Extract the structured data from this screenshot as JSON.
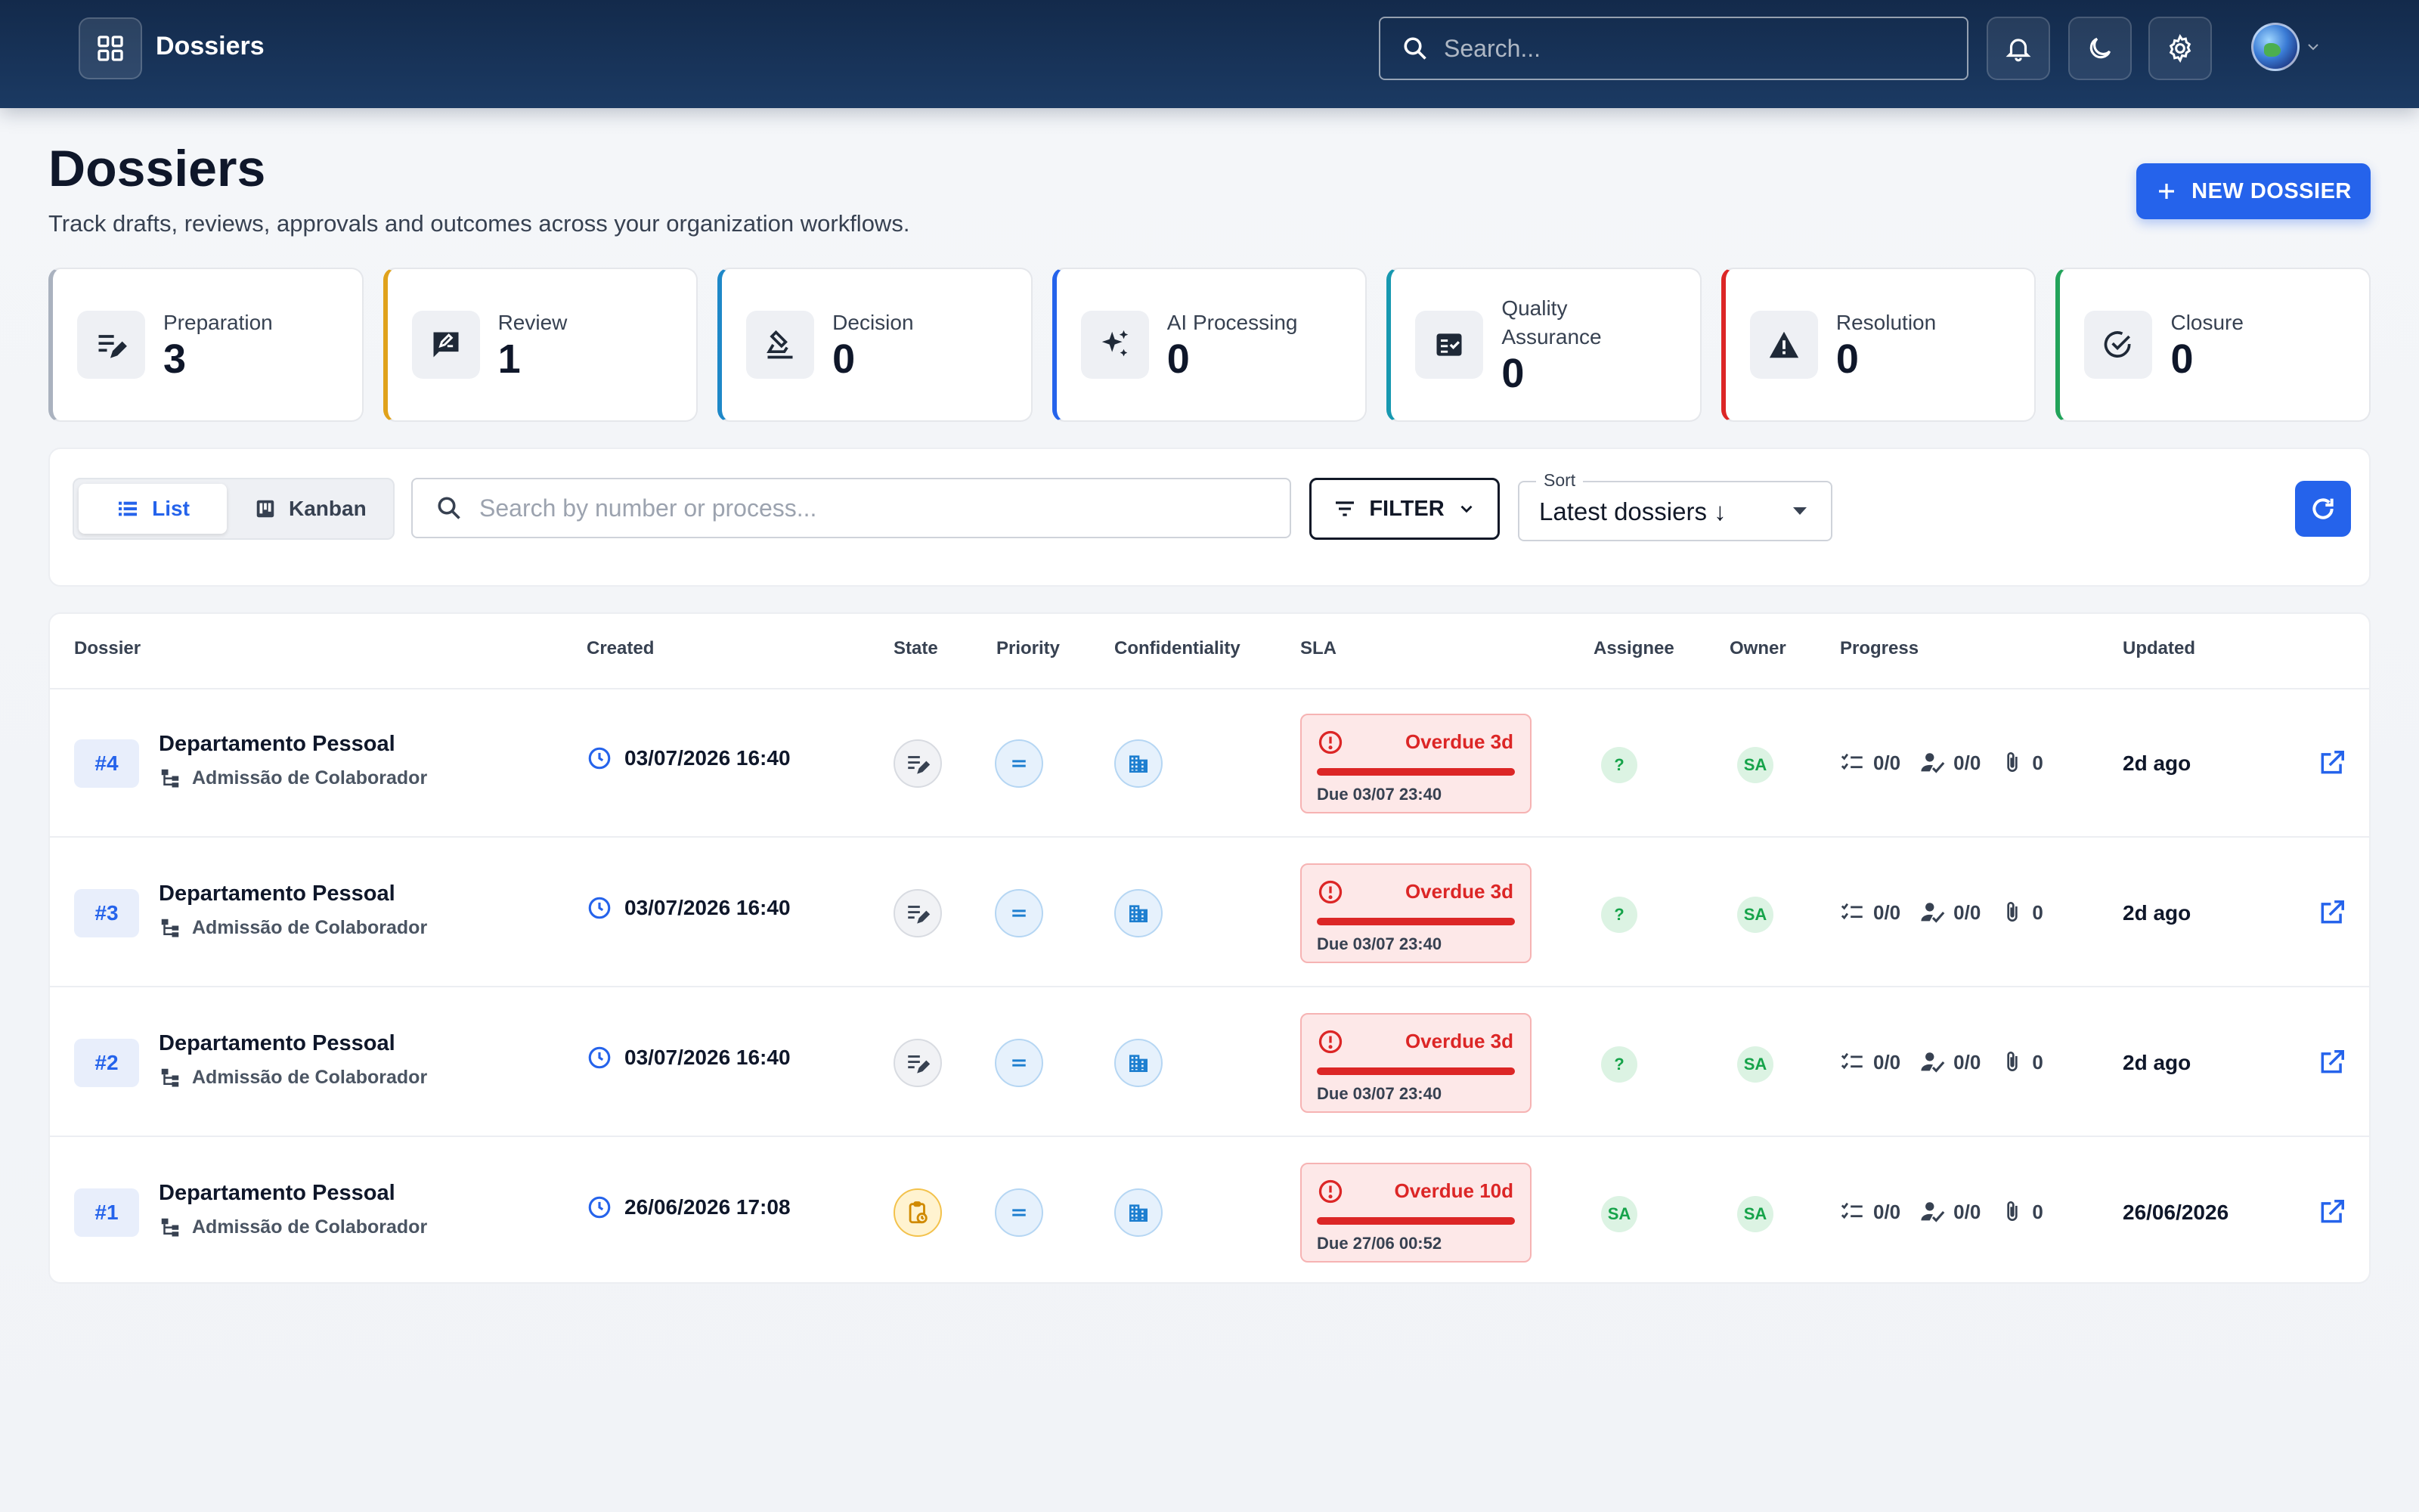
{
  "topbar": {
    "app_title": "Dossiers",
    "search_placeholder": "Search...",
    "icons": [
      "grid-icon",
      "bell-icon",
      "moon-icon",
      "gear-icon",
      "globe-avatar"
    ]
  },
  "header": {
    "title": "Dossiers",
    "subtitle": "Track drafts, reviews, approvals and outcomes across your organization workflows.",
    "new_button": "NEW DOSSIER"
  },
  "stats": [
    {
      "label": "Preparation",
      "value": "3",
      "color": "#aab2bf",
      "icon": "edit-list-icon"
    },
    {
      "label": "Review",
      "value": "1",
      "color": "#e0a21b",
      "icon": "rate-review-icon"
    },
    {
      "label": "Decision",
      "value": "0",
      "color": "#1e88c8",
      "icon": "stamp-icon"
    },
    {
      "label": "AI Processing",
      "value": "0",
      "color": "#2563eb",
      "icon": "sparkle-icon"
    },
    {
      "label": "Quality Assurance",
      "value": "0",
      "color": "#1798b0",
      "icon": "fact-check-icon"
    },
    {
      "label": "Resolution",
      "value": "0",
      "color": "#dc2626",
      "icon": "warning-icon"
    },
    {
      "label": "Closure",
      "value": "0",
      "color": "#22a35a",
      "icon": "check-circle-icon"
    }
  ],
  "toolbar": {
    "view_list": "List",
    "view_kanban": "Kanban",
    "search_placeholder": "Search by number or process...",
    "filter_label": "FILTER",
    "sort_legend": "Sort",
    "sort_value": "Latest dossiers ↓"
  },
  "table": {
    "headers": {
      "dossier": "Dossier",
      "created": "Created",
      "state": "State",
      "priority": "Priority",
      "confidentiality": "Confidentiality",
      "sla": "SLA",
      "assignee": "Assignee",
      "owner": "Owner",
      "progress": "Progress",
      "updated": "Updated"
    },
    "rows": [
      {
        "number": "#4",
        "department": "Departamento Pessoal",
        "process": "Admissão de Colaborador",
        "created": "03/07/2026 16:40",
        "state": "preparation",
        "sla_status": "Overdue 3d",
        "sla_due": "Due 03/07 23:40",
        "assignee": "?",
        "owner": "SA",
        "tasks": "0/0",
        "approvals": "0/0",
        "attachments": "0",
        "updated": "2d ago"
      },
      {
        "number": "#3",
        "department": "Departamento Pessoal",
        "process": "Admissão de Colaborador",
        "created": "03/07/2026 16:40",
        "state": "preparation",
        "sla_status": "Overdue 3d",
        "sla_due": "Due 03/07 23:40",
        "assignee": "?",
        "owner": "SA",
        "tasks": "0/0",
        "approvals": "0/0",
        "attachments": "0",
        "updated": "2d ago"
      },
      {
        "number": "#2",
        "department": "Departamento Pessoal",
        "process": "Admissão de Colaborador",
        "created": "03/07/2026 16:40",
        "state": "preparation",
        "sla_status": "Overdue 3d",
        "sla_due": "Due 03/07 23:40",
        "assignee": "?",
        "owner": "SA",
        "tasks": "0/0",
        "approvals": "0/0",
        "attachments": "0",
        "updated": "2d ago"
      },
      {
        "number": "#1",
        "department": "Departamento Pessoal",
        "process": "Admissão de Colaborador",
        "created": "26/06/2026 17:08",
        "state": "review",
        "sla_status": "Overdue 10d",
        "sla_due": "Due 27/06 00:52",
        "assignee": "SA",
        "owner": "SA",
        "tasks": "0/0",
        "approvals": "0/0",
        "attachments": "0",
        "updated": "26/06/2026"
      }
    ]
  }
}
